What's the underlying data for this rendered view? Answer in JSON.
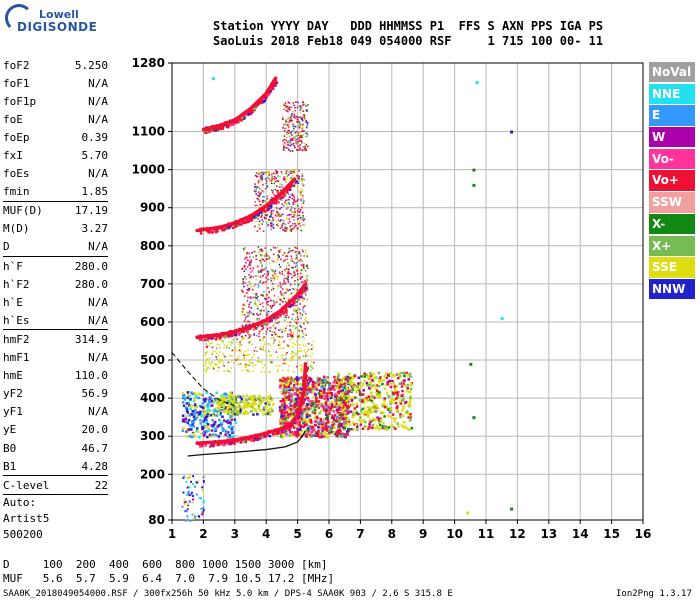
{
  "header": {
    "line1": "Station YYYY DAY   DDD HHMMSS P1  FFS S AXN PPS IGA PS",
    "line2": "SaoLuis 2018 Feb18 049 054000 RSF     1 715 100 00- 11"
  },
  "logo": {
    "line1": "Lowell",
    "line2": "DIGISONDE"
  },
  "parameters": [
    {
      "name": "foF2",
      "value": "5.250"
    },
    {
      "name": "foF1",
      "value": "N/A"
    },
    {
      "name": "foF1p",
      "value": "N/A"
    },
    {
      "name": "foE",
      "value": "N/A"
    },
    {
      "name": "foEp",
      "value": "0.39"
    },
    {
      "name": "fxI",
      "value": "5.70"
    },
    {
      "name": "foEs",
      "value": "N/A"
    },
    {
      "name": "fmin",
      "value": "1.85"
    },
    {
      "name": "MUF(D)",
      "value": "17.19"
    },
    {
      "name": "M(D)",
      "value": "3.27"
    },
    {
      "name": "D",
      "value": "N/A"
    },
    {
      "name": "h`F",
      "value": "280.0"
    },
    {
      "name": "h`F2",
      "value": "280.0"
    },
    {
      "name": "h`E",
      "value": "N/A"
    },
    {
      "name": "h`Es",
      "value": "N/A"
    },
    {
      "name": "hmF2",
      "value": "314.9"
    },
    {
      "name": "hmF1",
      "value": "N/A"
    },
    {
      "name": "hmE",
      "value": "110.0"
    },
    {
      "name": "yF2",
      "value": "56.9"
    },
    {
      "name": "yF1",
      "value": "N/A"
    },
    {
      "name": "yE",
      "value": "20.0"
    },
    {
      "name": "B0",
      "value": "46.7"
    },
    {
      "name": "B1",
      "value": "4.28"
    },
    {
      "name": "C-level",
      "value": "22"
    }
  ],
  "autoscaling": {
    "label": "Auto:",
    "artist": "Artist5",
    "code": "500200"
  },
  "legend": [
    {
      "label": "NoVal",
      "color": "#a0a0a0"
    },
    {
      "label": "NNE",
      "color": "#22e0f0"
    },
    {
      "label": "E",
      "color": "#3399ff"
    },
    {
      "label": "W",
      "color": "#aa00aa"
    },
    {
      "label": "Vo-",
      "color": "#ff3399"
    },
    {
      "label": "Vo+",
      "color": "#ee1133"
    },
    {
      "label": "SSW",
      "color": "#f0a0a0"
    },
    {
      "label": "X-",
      "color": "#118811"
    },
    {
      "label": "X+",
      "color": "#77bb55"
    },
    {
      "label": "SSE",
      "color": "#dddd11"
    },
    {
      "label": "NNW",
      "color": "#2222cc"
    }
  ],
  "footer": {
    "dline": "D     100  200  400  600  800 1000 1500 3000 [km]",
    "mufline": "MUF   5.6  5.7  5.9  6.4  7.0  7.9 10.5 17.2 [MHz]",
    "fileinfo": "SAA0K_2018049054000.RSF / 300fx256h 50 kHz 5.0 km / DPS-4 SAA0K 903 / 2.6 S 315.8 E",
    "version": "Ion2Png 1.3.17"
  },
  "chart_data": {
    "type": "scatter",
    "title": "",
    "xlabel": "",
    "ylabel": "",
    "xlim": [
      1,
      16
    ],
    "ylim": [
      80,
      1280
    ],
    "xticks": [
      1,
      2,
      3,
      4,
      5,
      6,
      7,
      8,
      9,
      10,
      11,
      12,
      13,
      14,
      15,
      16
    ],
    "yticks": [
      80,
      200,
      300,
      400,
      500,
      600,
      700,
      800,
      900,
      1000,
      1100,
      1280
    ],
    "grid": true,
    "traces": [
      {
        "name": "O-trace 1st hop",
        "color": "#ee1133",
        "x": [
          1.8,
          2.5,
          3.0,
          3.5,
          4.0,
          4.5,
          4.8,
          5.0,
          5.2,
          5.25
        ],
        "y": [
          282,
          285,
          290,
          298,
          308,
          320,
          335,
          355,
          420,
          490
        ]
      },
      {
        "name": "O-trace 2nd hop",
        "color": "#ee1133",
        "x": [
          1.8,
          2.5,
          3.0,
          3.5,
          4.0,
          4.5,
          5.0,
          5.25
        ],
        "y": [
          560,
          566,
          575,
          588,
          605,
          632,
          672,
          700
        ]
      },
      {
        "name": "O-trace 3rd hop",
        "color": "#ee1133",
        "x": [
          1.8,
          2.5,
          3.0,
          3.5,
          4.0,
          4.5,
          4.9
        ],
        "y": [
          840,
          848,
          860,
          878,
          905,
          940,
          975
        ]
      },
      {
        "name": "O-trace 4th hop",
        "color": "#ee1133",
        "x": [
          2.0,
          2.5,
          3.0,
          3.5,
          4.0,
          4.3
        ],
        "y": [
          1105,
          1115,
          1130,
          1160,
          1200,
          1240
        ]
      }
    ],
    "profile_curve": {
      "x": [
        1.5,
        2.0,
        3.0,
        4.0,
        4.6,
        5.0,
        5.15,
        5.25
      ],
      "y": [
        248,
        252,
        258,
        265,
        272,
        285,
        300,
        315
      ]
    },
    "dashed_curve": {
      "x": [
        1.0,
        1.5,
        2.0,
        2.5,
        3.0
      ],
      "y": [
        520,
        470,
        425,
        395,
        380
      ]
    },
    "outlier_points": [
      {
        "x": 10.7,
        "y": 1230,
        "color": "#22e0f0"
      },
      {
        "x": 11.8,
        "y": 1100,
        "color": "#2222cc"
      },
      {
        "x": 10.6,
        "y": 1000,
        "color": "#118811"
      },
      {
        "x": 10.6,
        "y": 960,
        "color": "#118811"
      },
      {
        "x": 11.5,
        "y": 610,
        "color": "#22e0f0"
      },
      {
        "x": 10.5,
        "y": 490,
        "color": "#118811"
      },
      {
        "x": 10.6,
        "y": 350,
        "color": "#118811"
      },
      {
        "x": 10.4,
        "y": 100,
        "color": "#dddd11"
      },
      {
        "x": 11.8,
        "y": 110,
        "color": "#118811"
      },
      {
        "x": 2.3,
        "y": 1240,
        "color": "#22e0f0"
      }
    ]
  }
}
